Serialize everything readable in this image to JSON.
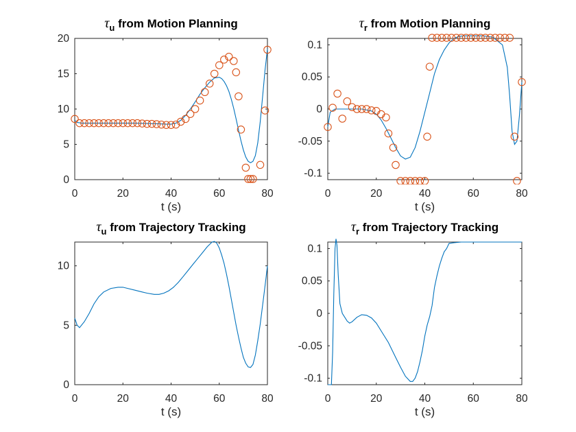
{
  "figure": {
    "background": "#ffffff"
  },
  "chart_data": [
    {
      "id": "tau-u-motion",
      "type": "line+scatter",
      "title": {
        "symbol": "τ",
        "subscript": "u",
        "text": " from Motion Planning"
      },
      "xlabel": "t (s)",
      "xlim": [
        0,
        80
      ],
      "ylim": [
        0,
        20
      ],
      "xticks": [
        0,
        20,
        40,
        60,
        80
      ],
      "yticks": [
        0,
        5,
        10,
        15,
        20
      ],
      "ytick_labels": [
        "0",
        "5",
        "10",
        "15",
        "20"
      ],
      "series": [
        {
          "kind": "line",
          "color": "#0072BD",
          "x": [
            0,
            1,
            3,
            6,
            10,
            15,
            20,
            25,
            30,
            35,
            38,
            40,
            42,
            44,
            46,
            48,
            50,
            52,
            54,
            56,
            58,
            60,
            61,
            62,
            63,
            64,
            65,
            66,
            67,
            68,
            69,
            70,
            71,
            72,
            73,
            74,
            75,
            76,
            77,
            78,
            79,
            80
          ],
          "y": [
            8.4,
            8.1,
            8.0,
            8.0,
            8.0,
            8.0,
            8.0,
            8.0,
            7.95,
            7.9,
            7.85,
            7.85,
            8.0,
            8.4,
            9.1,
            10.0,
            11.0,
            12.1,
            13.0,
            13.8,
            14.4,
            14.5,
            14.3,
            13.9,
            13.3,
            12.5,
            11.4,
            10.1,
            8.6,
            7.0,
            5.5,
            4.2,
            3.2,
            2.6,
            2.4,
            2.6,
            3.4,
            5.2,
            8.2,
            11.8,
            15.5,
            18.5
          ]
        },
        {
          "kind": "scatter",
          "color": "#D95319",
          "x": [
            0,
            2,
            4,
            6,
            8,
            10,
            12,
            14,
            16,
            18,
            20,
            22,
            24,
            26,
            28,
            30,
            32,
            34,
            36,
            38,
            40,
            42,
            44,
            46,
            48,
            50,
            52,
            54,
            56,
            58,
            60,
            62,
            64,
            66,
            67,
            68,
            69,
            71,
            72,
            73,
            74,
            77,
            79,
            80
          ],
          "y": [
            8.6,
            8.0,
            8.0,
            8.0,
            8.0,
            8.0,
            8.0,
            8.0,
            8.0,
            8.0,
            8.0,
            8.0,
            8.0,
            8.0,
            7.95,
            7.9,
            7.9,
            7.85,
            7.8,
            7.75,
            7.75,
            7.8,
            8.2,
            8.6,
            9.3,
            10.0,
            11.2,
            12.4,
            13.6,
            15.0,
            16.2,
            17.0,
            17.4,
            16.8,
            15.2,
            11.8,
            7.1,
            1.7,
            0.1,
            0.1,
            0.1,
            2.1,
            9.8,
            18.4
          ]
        }
      ]
    },
    {
      "id": "tau-r-motion",
      "type": "line+scatter",
      "title": {
        "symbol": "τ",
        "subscript": "r",
        "text": " from Motion Planning"
      },
      "xlabel": "t (s)",
      "xlim": [
        0,
        80
      ],
      "ylim": [
        -0.11,
        0.11
      ],
      "xticks": [
        0,
        20,
        40,
        60,
        80
      ],
      "yticks": [
        -0.1,
        -0.05,
        0,
        0.05,
        0.1
      ],
      "ytick_labels": [
        "-0.1",
        "-0.05",
        "0",
        "0.05",
        "0.1"
      ],
      "series": [
        {
          "kind": "line",
          "color": "#0072BD",
          "x": [
            0,
            1,
            3,
            6,
            10,
            14,
            18,
            20,
            22,
            24,
            26,
            28,
            30,
            32,
            34,
            36,
            38,
            40,
            42,
            44,
            46,
            48,
            50,
            52,
            54,
            56,
            60,
            64,
            68,
            72,
            74,
            75,
            76,
            77,
            78,
            79,
            80
          ],
          "y": [
            -0.028,
            -0.005,
            0.0,
            0.0,
            0.0,
            0.0,
            -0.003,
            -0.008,
            -0.017,
            -0.03,
            -0.045,
            -0.06,
            -0.073,
            -0.078,
            -0.075,
            -0.06,
            -0.035,
            -0.005,
            0.025,
            0.055,
            0.077,
            0.092,
            0.103,
            0.11,
            0.113,
            0.114,
            0.114,
            0.114,
            0.112,
            0.1,
            0.065,
            0.02,
            -0.035,
            -0.055,
            -0.05,
            -0.01,
            0.042
          ]
        },
        {
          "kind": "scatter",
          "color": "#D95319",
          "x": [
            0,
            2,
            4,
            6,
            8,
            10,
            12,
            14,
            16,
            18,
            20,
            22,
            24,
            25,
            27,
            28,
            30,
            32,
            34,
            36,
            38,
            40,
            41,
            42,
            43,
            45,
            47,
            49,
            51,
            53,
            55,
            57,
            59,
            61,
            63,
            65,
            67,
            69,
            71,
            73,
            75,
            77,
            78,
            80
          ],
          "y": [
            -0.028,
            0.002,
            0.024,
            -0.015,
            0.012,
            0.003,
            0.0,
            0.0,
            0.0,
            -0.002,
            -0.003,
            -0.008,
            -0.013,
            -0.038,
            -0.06,
            -0.087,
            -0.112,
            -0.112,
            -0.112,
            -0.112,
            -0.112,
            -0.112,
            -0.043,
            0.066,
            0.111,
            0.111,
            0.111,
            0.111,
            0.111,
            0.111,
            0.111,
            0.111,
            0.111,
            0.111,
            0.111,
            0.111,
            0.111,
            0.111,
            0.111,
            0.111,
            0.111,
            -0.043,
            -0.112,
            0.042
          ]
        }
      ]
    },
    {
      "id": "tau-u-tracking",
      "type": "line",
      "title": {
        "symbol": "τ",
        "subscript": "u",
        "text": " from Trajectory Tracking"
      },
      "xlabel": "t (s)",
      "xlim": [
        0,
        80
      ],
      "ylim": [
        0,
        12
      ],
      "xticks": [
        0,
        20,
        40,
        60,
        80
      ],
      "yticks": [
        0,
        5,
        10
      ],
      "ytick_labels": [
        "0",
        "5",
        "10"
      ],
      "series": [
        {
          "kind": "line",
          "color": "#0072BD",
          "x": [
            0,
            1,
            2,
            4,
            6,
            8,
            10,
            12,
            15,
            18,
            20,
            22,
            25,
            28,
            30,
            33,
            35,
            37,
            39,
            41,
            43,
            45,
            47,
            49,
            51,
            53,
            55,
            57,
            58,
            59,
            60,
            61,
            62,
            63,
            64,
            65,
            66,
            67,
            68,
            69,
            70,
            71,
            72,
            73,
            74,
            75,
            76,
            77,
            78,
            79,
            80
          ],
          "y": [
            5.6,
            5.0,
            4.8,
            5.3,
            6.0,
            6.8,
            7.4,
            7.8,
            8.1,
            8.2,
            8.2,
            8.1,
            7.95,
            7.8,
            7.7,
            7.6,
            7.6,
            7.7,
            7.9,
            8.2,
            8.6,
            9.1,
            9.6,
            10.1,
            10.6,
            11.1,
            11.6,
            12.0,
            12.05,
            11.9,
            11.5,
            10.9,
            10.2,
            9.3,
            8.3,
            7.2,
            6.1,
            5.0,
            4.0,
            3.1,
            2.3,
            1.8,
            1.5,
            1.45,
            1.7,
            2.5,
            3.7,
            5.1,
            6.7,
            8.3,
            10.0
          ]
        }
      ]
    },
    {
      "id": "tau-r-tracking",
      "type": "line",
      "title": {
        "symbol": "τ",
        "subscript": "r",
        "text": " from Trajectory Tracking"
      },
      "xlabel": "t (s)",
      "xlim": [
        0,
        80
      ],
      "ylim": [
        -0.11,
        0.11
      ],
      "xticks": [
        0,
        20,
        40,
        60,
        80
      ],
      "yticks": [
        -0.1,
        -0.05,
        0,
        0.05,
        0.1
      ],
      "ytick_labels": [
        "-0.1",
        "-0.05",
        "0",
        "0.05",
        "0.1"
      ],
      "series": [
        {
          "kind": "line",
          "color": "#0072BD",
          "x": [
            0,
            0.8,
            1.5,
            2,
            2.5,
            3,
            3.4,
            3.8,
            4.3,
            5,
            6,
            7,
            8,
            9,
            10,
            12,
            14,
            16,
            18,
            20,
            22,
            25,
            28,
            30,
            32,
            34,
            35,
            36,
            37,
            38,
            39,
            40,
            41,
            42,
            43,
            44,
            45,
            46,
            47,
            48,
            49,
            50,
            52,
            55,
            60,
            65,
            70,
            75,
            80
          ],
          "y": [
            -0.11,
            -0.11,
            -0.11,
            -0.06,
            0.03,
            0.1,
            0.115,
            0.105,
            0.06,
            0.015,
            0.0,
            -0.006,
            -0.012,
            -0.015,
            -0.013,
            -0.006,
            -0.002,
            -0.003,
            -0.007,
            -0.015,
            -0.027,
            -0.045,
            -0.068,
            -0.083,
            -0.097,
            -0.105,
            -0.105,
            -0.1,
            -0.09,
            -0.075,
            -0.057,
            -0.035,
            -0.018,
            -0.005,
            0.012,
            0.04,
            0.058,
            0.073,
            0.085,
            0.095,
            0.1,
            0.108,
            0.109,
            0.11,
            0.11,
            0.11,
            0.11,
            0.11,
            0.11
          ]
        }
      ]
    }
  ]
}
